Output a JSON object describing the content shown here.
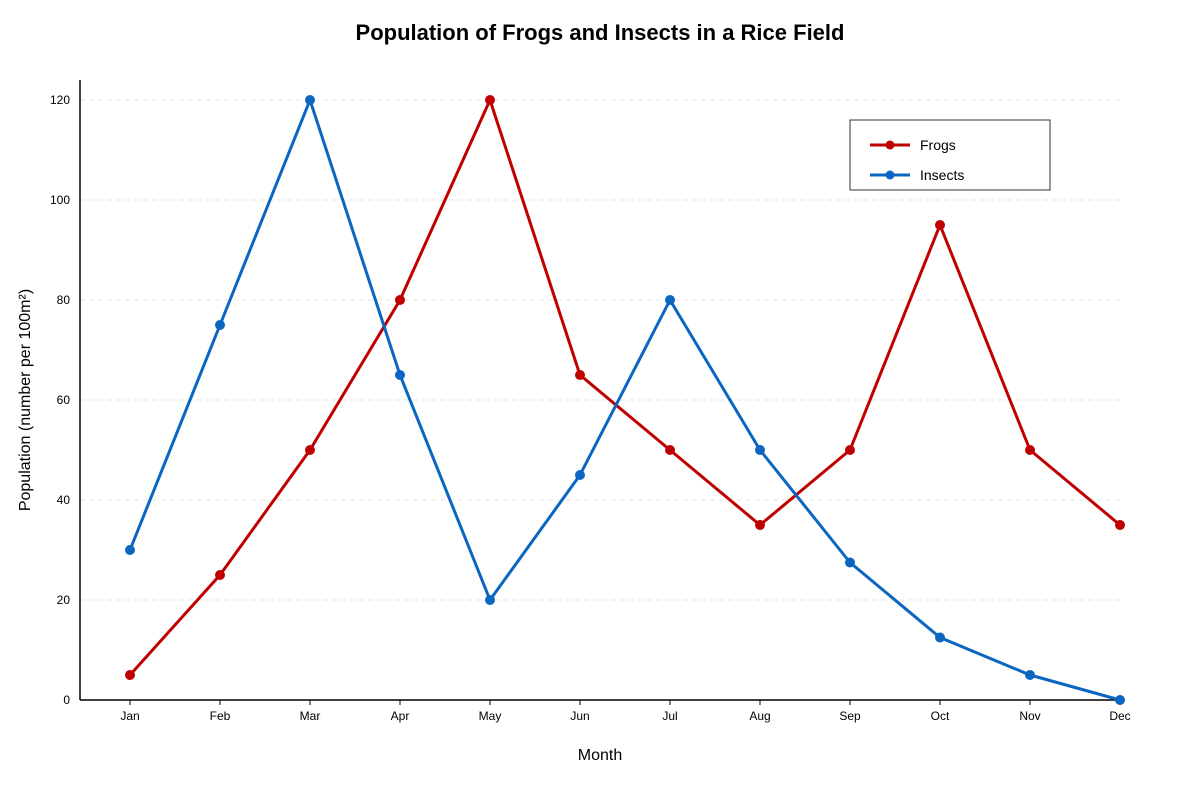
{
  "chart_data": {
    "type": "line",
    "title": "Population of Frogs and Insects in a Rice Field",
    "xlabel": "Month",
    "ylabel": "Population (number per 100m²)",
    "categories": [
      "Jan",
      "Feb",
      "Mar",
      "Apr",
      "May",
      "Jun",
      "Jul",
      "Aug",
      "Sep",
      "Oct",
      "Nov",
      "Dec"
    ],
    "ylim": [
      0,
      120
    ],
    "yticks": [
      "0",
      "20",
      "40",
      "60",
      "80",
      "100",
      "120"
    ],
    "grid": "horizontal-dashed",
    "legend_position": "top-right",
    "series": [
      {
        "name": "Frogs",
        "color": "#c00000",
        "values": [
          5,
          25,
          50,
          80,
          120,
          65,
          50,
          35,
          50,
          95,
          50,
          35
        ]
      },
      {
        "name": "Insects",
        "color": "#0b66c2",
        "values": [
          30,
          75,
          120,
          65,
          20,
          45,
          80,
          50,
          27.5,
          12.5,
          5,
          0
        ]
      }
    ]
  }
}
